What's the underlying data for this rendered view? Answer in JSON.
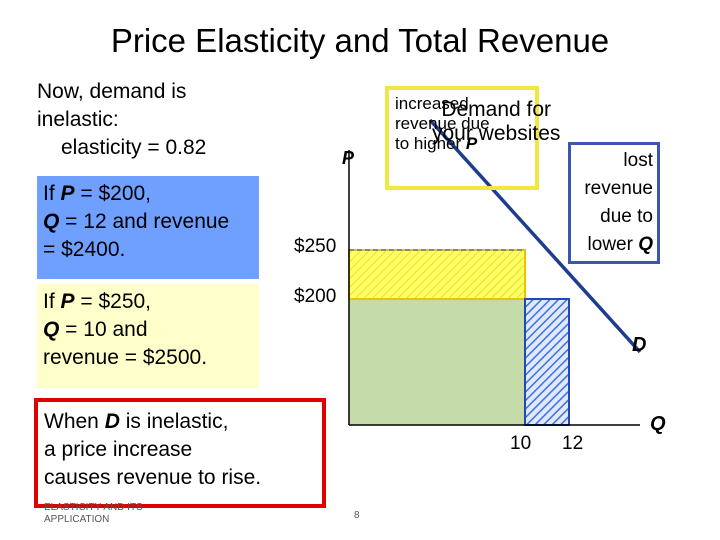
{
  "title": "Price Elasticity and Total Revenue",
  "intro": {
    "line1": "Now, demand is",
    "line2": "inelastic:",
    "line3": "elasticity = 0.82"
  },
  "box_blue": {
    "prefix_a": "If ",
    "var_p": "P",
    "eq_a": " = $200,",
    "var_q": "Q",
    "eq_b": " = 12 and revenue",
    "eq_c": "= $2400."
  },
  "box_yellow": {
    "prefix_a": "If ",
    "var_p": "P",
    "eq_a": " = $250,",
    "var_q": "Q",
    "eq_b": " = 10 and",
    "eq_c": "revenue = $2500."
  },
  "box_red": {
    "pre": "When ",
    "var_d": "D",
    "post1": " is inelastic,",
    "line2": "a price increase",
    "line3": "causes revenue to rise."
  },
  "chart": {
    "y_axis_label": "P",
    "x_axis_label": "Q",
    "curve_label": "D",
    "price_high": "$250",
    "price_low": "$200",
    "qty_low": "10",
    "qty_high": "12",
    "increased_box": {
      "line1": "increased",
      "line2": "revenue due",
      "line3_pre": "to higher ",
      "line3_var": "P"
    },
    "demand_overlay": {
      "line1": "Demand for",
      "line2": "your websites"
    },
    "lost_box": {
      "line1": "lost",
      "line2": "revenue",
      "line3": "due to",
      "line4_pre": "lower ",
      "line4_var": "Q"
    },
    "colors": {
      "green_area": "#c5dcaa",
      "yellow_area": "#ffff66",
      "blue_hatch": "#3b6fe0",
      "demand_line": "#1f3d8f",
      "red_border": "#e00000",
      "yellow_border": "#f2e640"
    }
  },
  "footer": {
    "line1": "ELASTICITY AND ITS",
    "line2": "APPLICATION"
  },
  "page_number": "8"
}
